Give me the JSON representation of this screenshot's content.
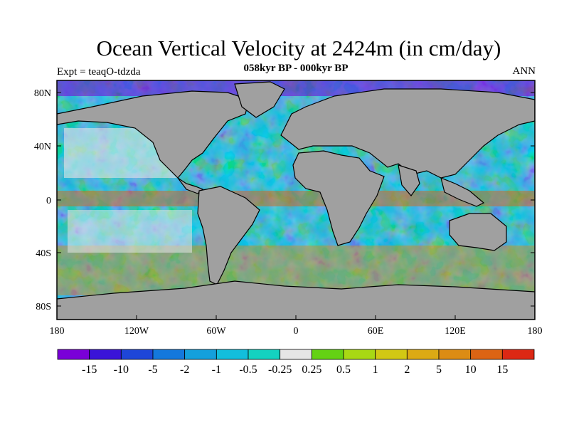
{
  "title": "Ocean Vertical Velocity at 2424m (in cm/day)",
  "subtitle": "058kyr BP - 000kyr BP",
  "experiment": "Expt = teaqO-tdzda",
  "season": "ANN",
  "lat_labels": [
    "80N",
    "40N",
    "0",
    "40S",
    "80S"
  ],
  "lon_labels": [
    "180",
    "120W",
    "60W",
    "0",
    "60E",
    "120E",
    "180"
  ],
  "colorbar": {
    "colors": [
      "#7a00d8",
      "#3a14d8",
      "#1e46d8",
      "#1478dc",
      "#14a0dc",
      "#12bedc",
      "#14d2c0",
      "#e6e6e6",
      "#64d214",
      "#a8d814",
      "#d2c814",
      "#dcaa14",
      "#dc8c14",
      "#dc6414",
      "#dc2814"
    ],
    "labels": [
      "-15",
      "-10",
      "-5",
      "-2",
      "-1",
      "-0.5",
      "-0.25",
      "0.25",
      "0.5",
      "1",
      "2",
      "5",
      "10",
      "15"
    ]
  },
  "colors": {
    "land": "#a0a0a0",
    "missing": "#e6e6e6"
  }
}
